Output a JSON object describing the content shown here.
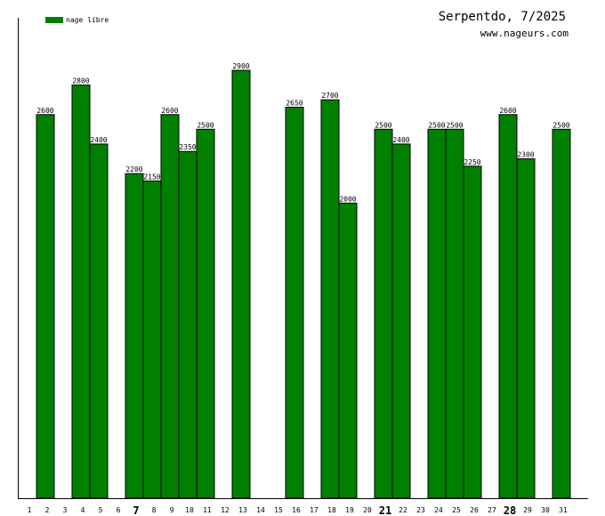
{
  "chart_data": {
    "type": "bar",
    "title": "Serpentdo, 7/2025",
    "subtitle": "www.nageurs.com",
    "legend": {
      "position": "top-left",
      "label": "nage libre",
      "color": "#008000"
    },
    "bar_color": "#008000",
    "bar_border_color": "#000000",
    "ylim": [
      0,
      3000
    ],
    "grid": false,
    "emphasized_days": [
      "7",
      "21",
      "28"
    ],
    "categories": [
      "1",
      "2",
      "3",
      "4",
      "5",
      "6",
      "7",
      "8",
      "9",
      "10",
      "11",
      "12",
      "13",
      "14",
      "15",
      "16",
      "17",
      "18",
      "19",
      "20",
      "21",
      "22",
      "23",
      "24",
      "25",
      "26",
      "27",
      "28",
      "29",
      "30",
      "31"
    ],
    "bars": [
      {
        "day": 2,
        "value": 2600
      },
      {
        "day": 4,
        "value": 2800
      },
      {
        "day": 5,
        "value": 2400
      },
      {
        "day": 7,
        "value": 2200
      },
      {
        "day": 8,
        "value": 2150
      },
      {
        "day": 9,
        "value": 2600
      },
      {
        "day": 10,
        "value": 2350
      },
      {
        "day": 11,
        "value": 2500
      },
      {
        "day": 13,
        "value": 2900
      },
      {
        "day": 16,
        "value": 2650
      },
      {
        "day": 18,
        "value": 2700
      },
      {
        "day": 19,
        "value": 2000
      },
      {
        "day": 21,
        "value": 2500
      },
      {
        "day": 22,
        "value": 2400
      },
      {
        "day": 24,
        "value": 2500
      },
      {
        "day": 25,
        "value": 2500
      },
      {
        "day": 26,
        "value": 2250
      },
      {
        "day": 28,
        "value": 2600
      },
      {
        "day": 29,
        "value": 2300
      },
      {
        "day": 31,
        "value": 2500
      }
    ]
  }
}
